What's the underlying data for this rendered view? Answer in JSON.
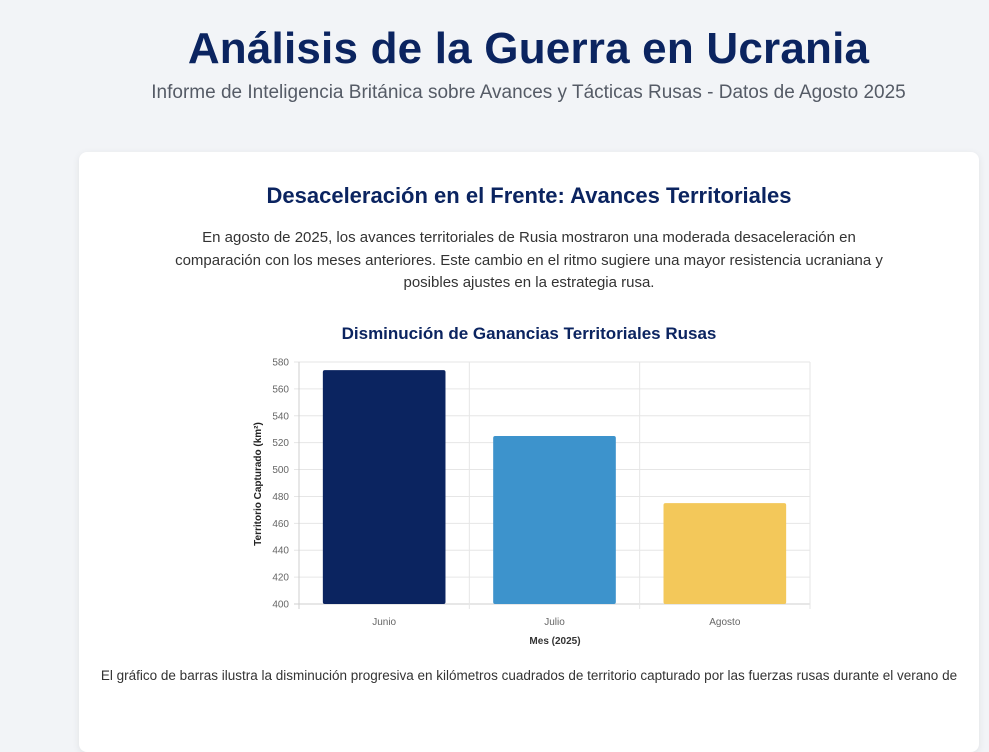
{
  "header": {
    "title": "Análisis de la Guerra en Ucrania",
    "subtitle": "Informe de Inteligencia Británica sobre Avances y Tácticas Rusas - Datos de Agosto 2025"
  },
  "section": {
    "title": "Desaceleración en el Frente: Avances Territoriales",
    "intro": "En agosto de 2025, los avances territoriales de Rusia mostraron una moderada desaceleración en comparación con los meses anteriores. Este cambio en el ritmo sugiere una mayor resistencia ucraniana y posibles ajustes en la estrategia rusa.",
    "footer": "El gráfico de barras ilustra la disminución progresiva en kilómetros cuadrados de territorio capturado por las fuerzas rusas durante el verano de"
  },
  "chart_data": {
    "type": "bar",
    "title": "Disminución de Ganancias Territoriales Rusas",
    "xlabel": "Mes (2025)",
    "ylabel": "Territorio Capturado (km²)",
    "categories": [
      "Junio",
      "Julio",
      "Agosto"
    ],
    "values": [
      574,
      525,
      475
    ],
    "colors": [
      "#0b2460",
      "#3d93cc",
      "#f3c85a"
    ],
    "ylim": [
      400,
      580
    ],
    "yticks": [
      400,
      420,
      440,
      460,
      480,
      500,
      520,
      540,
      560,
      580
    ],
    "grid": true
  }
}
